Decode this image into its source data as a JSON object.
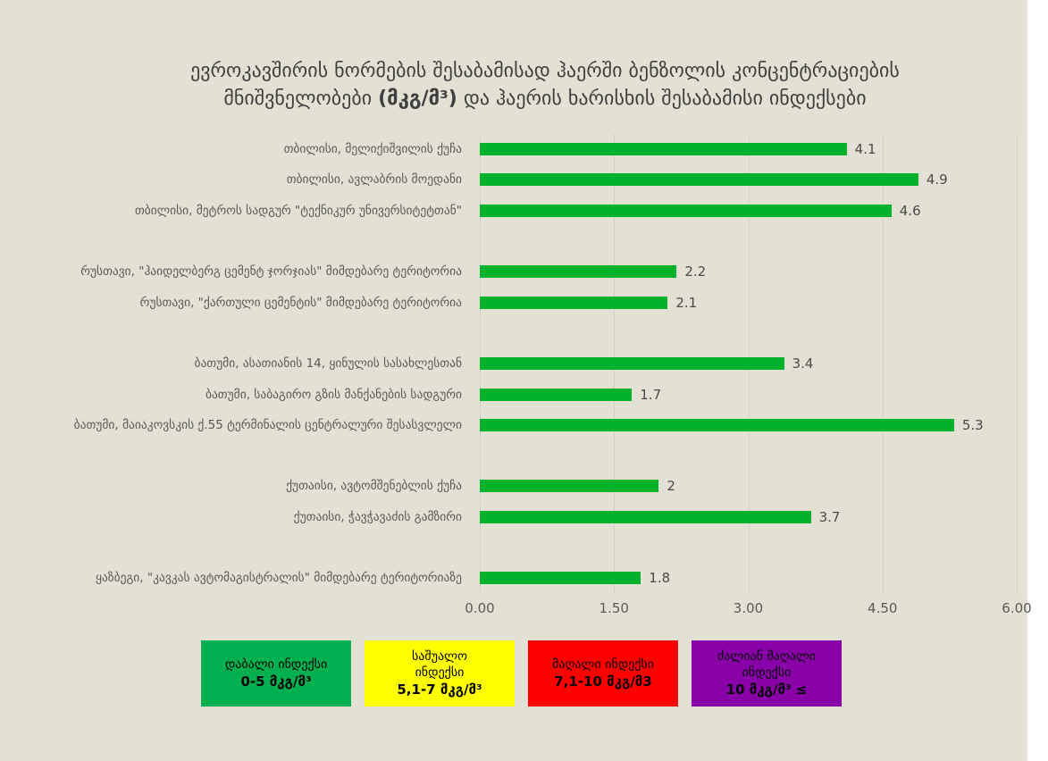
{
  "title": {
    "line1": "ევროკავშირის ნორმების შესაბამისად ჰაერში ბენზოლის კონცენტრაციების",
    "line2_pre": "მნიშვნელობები ",
    "line2_unit": "(მკგ/მ³)",
    "line2_post": " და ჰაერის ხარისხის შესაბამისი ინდექსები"
  },
  "chart_data": {
    "type": "bar",
    "orientation": "horizontal",
    "title": "ევროკავშირის ნორმების შესაბამისად ჰაერში ბენზოლის კონცენტრაციების მნიშვნელობები (მკგ/მ³) და ჰაერის ხარისხის შესაბამისი ინდექსები",
    "xlabel": "",
    "ylabel": "",
    "xlim": [
      0,
      6
    ],
    "x_ticks": [
      "0.00",
      "1.50",
      "3.00",
      "4.50",
      "6.00"
    ],
    "grid": true,
    "groups": [
      {
        "name": "თბილისი",
        "rows": [
          {
            "label": "თბილისი, მელიქიშვილის ქუჩა",
            "value": 4.1,
            "value_label": "4.1"
          },
          {
            "label": "თბილისი, ავლაბრის მოედანი",
            "value": 4.9,
            "value_label": "4.9"
          },
          {
            "label": "თბილისი, მეტროს სადგურ \"ტექნიკურ უნივერსიტეტთან\"",
            "value": 4.6,
            "value_label": "4.6"
          }
        ]
      },
      {
        "name": "რუსთავი",
        "rows": [
          {
            "label": "რუსთავი, \"ჰაიდელბერგ ცემენტ ჯორჯიას\" მიმდებარე ტერიტორია",
            "value": 2.2,
            "value_label": "2.2"
          },
          {
            "label": "რუსთავი, \"ქართული ცემენტის\" მიმდებარე ტერიტორია",
            "value": 2.1,
            "value_label": "2.1"
          }
        ]
      },
      {
        "name": "ბათუმი",
        "rows": [
          {
            "label": "ბათუმი, ასათიანის 14, ყინულის სასახლესთან",
            "value": 3.4,
            "value_label": "3.4"
          },
          {
            "label": "ბათუმი, საბაგირო გზის მანქანების სადგური",
            "value": 1.7,
            "value_label": "1.7"
          },
          {
            "label": "ბათუმი, მაიაკოვსკის ქ.55 ტერმინალის ცენტრალური შესასვლელი",
            "value": 5.3,
            "value_label": "5.3"
          }
        ]
      },
      {
        "name": "ქუთაისი",
        "rows": [
          {
            "label": "ქუთაისი, ავტომშენებლის ქუჩა",
            "value": 2,
            "value_label": "2"
          },
          {
            "label": "ქუთაისი, ჭავჭავაძის გამზირი",
            "value": 3.7,
            "value_label": "3.7"
          }
        ]
      },
      {
        "name": "ყაზბეგი",
        "rows": [
          {
            "label": "ყაზბეგი, \"კავკას ავტომაგისტრალის\" მიმდებარე ტერიტორიაზე",
            "value": 1.8,
            "value_label": "1.8"
          }
        ]
      }
    ]
  },
  "legend": {
    "items": [
      {
        "label_lines": [
          "დაბალი ინდექსი"
        ],
        "range": "0-5 მკგ/მ³",
        "color": "#00B050"
      },
      {
        "label_lines": [
          "საშუალო",
          "ინდექსი"
        ],
        "range": "5,1-7 მკგ/მ³",
        "color": "#FFFF00"
      },
      {
        "label_lines": [
          "მაღალი ინდექსი"
        ],
        "range": "7,1-10 მკგ/მ3",
        "color": "#FF0000"
      },
      {
        "label_lines": [
          "ძალიან მაღალი",
          "ინდექსი"
        ],
        "range": "10 მკგ/მ³ ≤",
        "color": "#8A00A8"
      }
    ]
  },
  "colors": {
    "background": "#E3E0D4",
    "bar": "#00B22B",
    "grid": "#D2D0C6",
    "title_text": "#3F3F3F",
    "label_text": "#595959"
  }
}
